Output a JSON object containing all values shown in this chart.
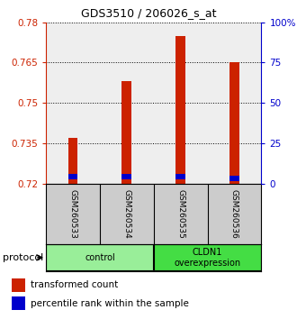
{
  "title": "GDS3510 / 206026_s_at",
  "samples": [
    "GSM260533",
    "GSM260534",
    "GSM260535",
    "GSM260536"
  ],
  "red_bar_tops": [
    0.737,
    0.758,
    0.775,
    0.765
  ],
  "blue_bar_bottoms": [
    0.7215,
    0.7215,
    0.7215,
    0.721
  ],
  "blue_bar_tops": [
    0.7235,
    0.7235,
    0.7235,
    0.723
  ],
  "bar_bottom": 0.72,
  "ylim_left": [
    0.72,
    0.78
  ],
  "ylim_right": [
    0,
    100
  ],
  "yticks_left": [
    0.72,
    0.735,
    0.75,
    0.765,
    0.78
  ],
  "ytick_labels_left": [
    "0.72",
    "0.735",
    "0.75",
    "0.765",
    "0.78"
  ],
  "yticks_right": [
    0,
    25,
    50,
    75,
    100
  ],
  "ytick_labels_right": [
    "0",
    "25",
    "50",
    "75",
    "100%"
  ],
  "red_color": "#cc2200",
  "blue_color": "#0000cc",
  "protocol_groups": [
    {
      "label": "control",
      "samples_idx": [
        0,
        1
      ],
      "color": "#99ee99"
    },
    {
      "label": "CLDN1\noverexpression",
      "samples_idx": [
        2,
        3
      ],
      "color": "#44dd44"
    }
  ],
  "protocol_label": "protocol",
  "legend_red": "transformed count",
  "legend_blue": "percentile rank within the sample",
  "bar_width": 0.18,
  "tick_color_left": "#cc2200",
  "tick_color_right": "#0000cc",
  "plot_bg": "#eeeeee",
  "sample_bg": "#cccccc"
}
